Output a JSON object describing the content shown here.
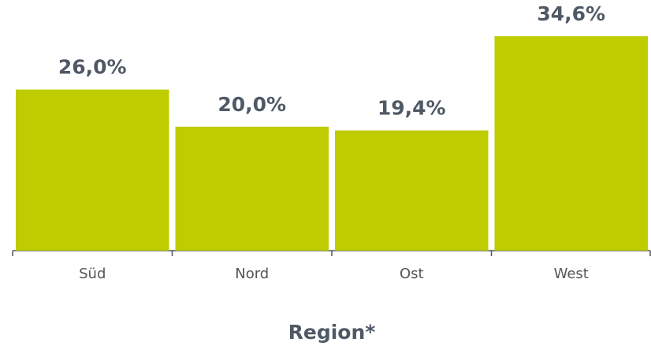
{
  "chart_data": {
    "type": "bar",
    "categories": [
      "Süd",
      "Nord",
      "Ost",
      "West"
    ],
    "values": [
      26.0,
      20.0,
      19.4,
      34.6
    ],
    "value_labels": [
      "26,0%",
      "20,0%",
      "19,4%",
      "34,6%"
    ],
    "color": "#bfcc00",
    "xlabel": "Region*"
  }
}
